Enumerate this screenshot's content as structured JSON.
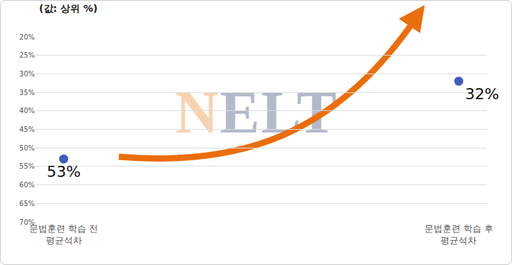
{
  "chart_data": {
    "type": "scatter",
    "title": "(값: 상위 %)",
    "watermark": "NELT",
    "categories": [
      "문법훈련 학습 전\n평균석차",
      "문법훈련 학습 후\n평균석차"
    ],
    "values": [
      53,
      32
    ],
    "value_labels": [
      "53%",
      "32%"
    ],
    "data_labels": true,
    "color": "#3f5bbf",
    "marker": "circle",
    "ylim": [
      70,
      20
    ],
    "yticks": [
      {
        "value": 20,
        "label": "20%"
      },
      {
        "value": 25,
        "label": "25%"
      },
      {
        "value": 30,
        "label": "30%"
      },
      {
        "value": 35,
        "label": "35%"
      },
      {
        "value": 40,
        "label": "40%"
      },
      {
        "value": 45,
        "label": "45%"
      },
      {
        "value": 50,
        "label": "50%"
      },
      {
        "value": 55,
        "label": "55%"
      },
      {
        "value": 60,
        "label": "60%"
      },
      {
        "value": 65,
        "label": "65%"
      },
      {
        "value": 70,
        "label": "70%"
      }
    ],
    "grid": true
  }
}
